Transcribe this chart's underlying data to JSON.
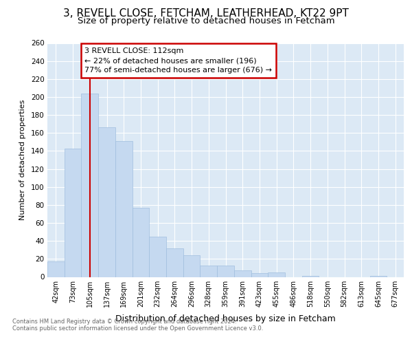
{
  "title1": "3, REVELL CLOSE, FETCHAM, LEATHERHEAD, KT22 9PT",
  "title2": "Size of property relative to detached houses in Fetcham",
  "xlabel": "Distribution of detached houses by size in Fetcham",
  "ylabel": "Number of detached properties",
  "bar_color": "#c5d9f0",
  "bar_edge_color": "#a0bede",
  "categories": [
    "42sqm",
    "73sqm",
    "105sqm",
    "137sqm",
    "169sqm",
    "201sqm",
    "232sqm",
    "264sqm",
    "296sqm",
    "328sqm",
    "359sqm",
    "391sqm",
    "423sqm",
    "455sqm",
    "486sqm",
    "518sqm",
    "550sqm",
    "582sqm",
    "613sqm",
    "645sqm",
    "677sqm"
  ],
  "values": [
    17,
    143,
    204,
    166,
    151,
    77,
    45,
    32,
    24,
    13,
    13,
    7,
    4,
    5,
    0,
    1,
    0,
    0,
    0,
    1,
    0
  ],
  "vline_x": 2,
  "vline_color": "#cc0000",
  "annotation_line1": "3 REVELL CLOSE: 112sqm",
  "annotation_line2": "← 22% of detached houses are smaller (196)",
  "annotation_line3": "77% of semi-detached houses are larger (676) →",
  "annotation_box_color": "#ffffff",
  "annotation_box_edge": "#cc0000",
  "ylim": [
    0,
    260
  ],
  "yticks": [
    0,
    20,
    40,
    60,
    80,
    100,
    120,
    140,
    160,
    180,
    200,
    220,
    240,
    260
  ],
  "footer1": "Contains HM Land Registry data © Crown copyright and database right 2024.",
  "footer2": "Contains public sector information licensed under the Open Government Licence v3.0.",
  "bg_color": "#ffffff",
  "plot_bg_color": "#dce9f5",
  "grid_color": "#ffffff",
  "title1_fontsize": 11,
  "title2_fontsize": 9.5
}
